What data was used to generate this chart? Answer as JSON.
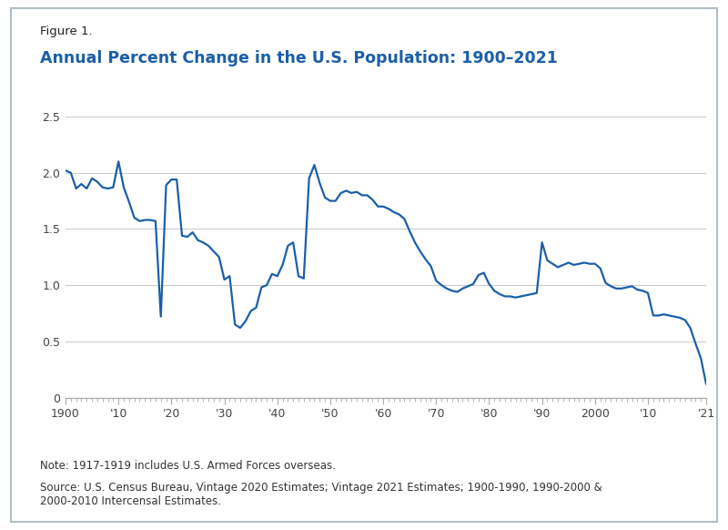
{
  "title_line1": "Figure 1.",
  "title_line2": "Annual Percent Change in the U.S. Population: 1900–2021",
  "title_line1_color": "#222222",
  "title_line2_color": "#1a5fa8",
  "line_color": "#1a5fa8",
  "line_width": 1.6,
  "ylim": [
    0,
    2.5
  ],
  "xlim": [
    1900,
    2021
  ],
  "yticks": [
    0,
    0.5,
    1.0,
    1.5,
    2.0,
    2.5
  ],
  "ytick_labels": [
    "0",
    "0.5",
    "1.0",
    "1.5",
    "2.0",
    "2.5"
  ],
  "xtick_labels": [
    "1900",
    "'10",
    "'20",
    "'30",
    "'40",
    "'50",
    "'60",
    "'70",
    "'80",
    "'90",
    "2000",
    "'10",
    "'21"
  ],
  "xtick_positions": [
    1900,
    1910,
    1920,
    1930,
    1940,
    1950,
    1960,
    1970,
    1980,
    1990,
    2000,
    2010,
    2021
  ],
  "note": "Note: 1917-1919 includes U.S. Armed Forces overseas.",
  "source": "Source: U.S. Census Bureau, Vintage 2020 Estimates; Vintage 2021 Estimates; 1900-1990, 1990-2000 &\n2000-2010 Intercensal Estimates.",
  "background_color": "#ffffff",
  "outer_border_color": "#b0bec5",
  "years": [
    1900,
    1901,
    1902,
    1903,
    1904,
    1905,
    1906,
    1907,
    1908,
    1909,
    1910,
    1911,
    1912,
    1913,
    1914,
    1915,
    1916,
    1917,
    1918,
    1919,
    1920,
    1921,
    1922,
    1923,
    1924,
    1925,
    1926,
    1927,
    1928,
    1929,
    1930,
    1931,
    1932,
    1933,
    1934,
    1935,
    1936,
    1937,
    1938,
    1939,
    1940,
    1941,
    1942,
    1943,
    1944,
    1945,
    1946,
    1947,
    1948,
    1949,
    1950,
    1951,
    1952,
    1953,
    1954,
    1955,
    1956,
    1957,
    1958,
    1959,
    1960,
    1961,
    1962,
    1963,
    1964,
    1965,
    1966,
    1967,
    1968,
    1969,
    1970,
    1971,
    1972,
    1973,
    1974,
    1975,
    1976,
    1977,
    1978,
    1979,
    1980,
    1981,
    1982,
    1983,
    1984,
    1985,
    1986,
    1987,
    1988,
    1989,
    1990,
    1991,
    1992,
    1993,
    1994,
    1995,
    1996,
    1997,
    1998,
    1999,
    2000,
    2001,
    2002,
    2003,
    2004,
    2005,
    2006,
    2007,
    2008,
    2009,
    2010,
    2011,
    2012,
    2013,
    2014,
    2015,
    2016,
    2017,
    2018,
    2019,
    2020,
    2021
  ],
  "values": [
    2.02,
    2.0,
    1.86,
    1.9,
    1.86,
    1.95,
    1.92,
    1.87,
    1.86,
    1.87,
    2.1,
    1.87,
    1.74,
    1.6,
    1.57,
    1.58,
    1.58,
    1.57,
    0.72,
    1.89,
    1.94,
    1.94,
    1.44,
    1.43,
    1.47,
    1.4,
    1.38,
    1.35,
    1.3,
    1.25,
    1.05,
    1.08,
    0.65,
    0.62,
    0.68,
    0.77,
    0.8,
    0.98,
    1.0,
    1.1,
    1.08,
    1.18,
    1.35,
    1.38,
    1.08,
    1.06,
    1.95,
    2.07,
    1.91,
    1.78,
    1.75,
    1.75,
    1.82,
    1.84,
    1.82,
    1.83,
    1.8,
    1.8,
    1.76,
    1.7,
    1.7,
    1.68,
    1.65,
    1.63,
    1.59,
    1.48,
    1.38,
    1.3,
    1.23,
    1.17,
    1.04,
    1.0,
    0.97,
    0.95,
    0.94,
    0.97,
    0.99,
    1.01,
    1.09,
    1.11,
    1.01,
    0.95,
    0.92,
    0.9,
    0.9,
    0.89,
    0.9,
    0.91,
    0.92,
    0.93,
    1.38,
    1.22,
    1.19,
    1.16,
    1.18,
    1.2,
    1.18,
    1.19,
    1.2,
    1.19,
    1.19,
    1.15,
    1.02,
    0.99,
    0.97,
    0.97,
    0.98,
    0.99,
    0.96,
    0.95,
    0.93,
    0.73,
    0.73,
    0.74,
    0.73,
    0.72,
    0.71,
    0.69,
    0.62,
    0.48,
    0.35,
    0.12
  ]
}
